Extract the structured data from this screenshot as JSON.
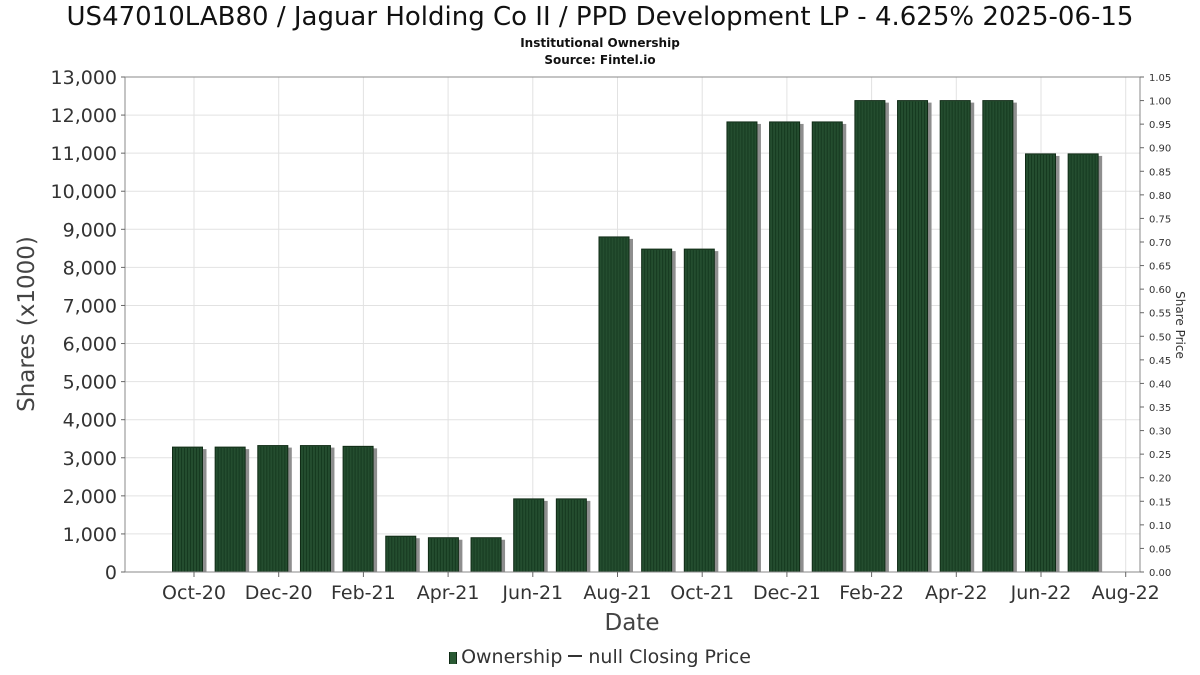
{
  "header": {
    "title": "US47010LAB80 / Jaguar Holding Co II / PPD Development LP - 4.625% 2025-06-15",
    "subtitle1": "Institutional Ownership",
    "subtitle2": "Source: Fintel.io"
  },
  "legend": {
    "ownership": "Ownership",
    "closing_price": "null Closing Price"
  },
  "colors": {
    "bar": "#244d2f",
    "bar_shadow": "#8e8e8e",
    "grid": "#e2e2e2"
  },
  "chart_data": {
    "type": "bar",
    "title": "US47010LAB80 / Jaguar Holding Co II / PPD Development LP - 4.625% 2025-06-15",
    "xlabel": "Date",
    "ylabel": "Shares (x1000)",
    "y2label": "Share Price",
    "ylim": [
      0,
      13000
    ],
    "y2lim": [
      0,
      1.05
    ],
    "grid": true,
    "legend_position": "bottom",
    "y_ticks": [
      "0",
      "1,000",
      "2,000",
      "3,000",
      "4,000",
      "5,000",
      "6,000",
      "7,000",
      "8,000",
      "9,000",
      "10,000",
      "11,000",
      "12,000",
      "13,000"
    ],
    "y2_ticks": [
      "0.00",
      "0.05",
      "0.10",
      "0.15",
      "0.20",
      "0.25",
      "0.30",
      "0.35",
      "0.40",
      "0.45",
      "0.50",
      "0.55",
      "0.60",
      "0.65",
      "0.70",
      "0.75",
      "0.80",
      "0.85",
      "0.90",
      "0.95",
      "1.00",
      "1.05"
    ],
    "x_ticks": [
      "Oct-20",
      "Dec-20",
      "Feb-21",
      "Apr-21",
      "Jun-21",
      "Aug-21",
      "Oct-21",
      "Dec-21",
      "Feb-22",
      "Apr-22",
      "Jun-22",
      "Aug-22"
    ],
    "series": [
      {
        "name": "Ownership",
        "values": [
          3280,
          3280,
          3320,
          3320,
          3300,
          940,
          900,
          900,
          1920,
          1920,
          8800,
          8480,
          8480,
          11820,
          11820,
          11820,
          12380,
          12380,
          12380,
          12380,
          10980,
          10980
        ]
      }
    ]
  }
}
